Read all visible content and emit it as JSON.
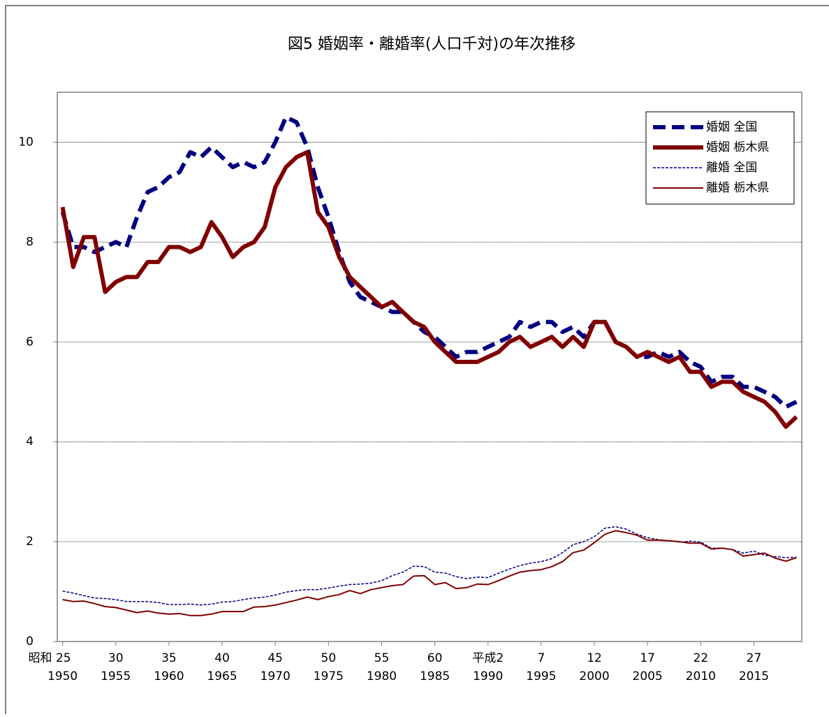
{
  "chart_data": {
    "type": "line",
    "title": "図5 婚姻率・離婚率(人口千対)の年次推移",
    "x": [
      1950,
      1951,
      1952,
      1953,
      1954,
      1955,
      1956,
      1957,
      1958,
      1959,
      1960,
      1961,
      1962,
      1963,
      1964,
      1965,
      1966,
      1967,
      1968,
      1969,
      1970,
      1971,
      1972,
      1973,
      1974,
      1975,
      1976,
      1977,
      1978,
      1979,
      1980,
      1981,
      1982,
      1983,
      1984,
      1985,
      1986,
      1987,
      1988,
      1989,
      1990,
      1991,
      1992,
      1993,
      1994,
      1995,
      1996,
      1997,
      1998,
      1999,
      2000,
      2001,
      2002,
      2003,
      2004,
      2005,
      2006,
      2007,
      2008,
      2009,
      2010,
      2011,
      2012,
      2013,
      2014,
      2015,
      2016,
      2017,
      2018,
      2019
    ],
    "xlim": [
      1949.5,
      2019.5
    ],
    "xticks": [
      {
        "value": 1950,
        "label": "1950",
        "era_label": "昭和 25"
      },
      {
        "value": 1955,
        "label": "1955",
        "era_label": "30"
      },
      {
        "value": 1960,
        "label": "1960",
        "era_label": "35"
      },
      {
        "value": 1965,
        "label": "1965",
        "era_label": "40"
      },
      {
        "value": 1970,
        "label": "1970",
        "era_label": "45"
      },
      {
        "value": 1975,
        "label": "1975",
        "era_label": "50"
      },
      {
        "value": 1980,
        "label": "1980",
        "era_label": "55"
      },
      {
        "value": 1985,
        "label": "1985",
        "era_label": "60"
      },
      {
        "value": 1990,
        "label": "1990",
        "era_label": "平成2"
      },
      {
        "value": 1995,
        "label": "1995",
        "era_label": "7"
      },
      {
        "value": 2000,
        "label": "2000",
        "era_label": "12"
      },
      {
        "value": 2005,
        "label": "2005",
        "era_label": "17"
      },
      {
        "value": 2010,
        "label": "2010",
        "era_label": "22"
      },
      {
        "value": 2015,
        "label": "2015",
        "era_label": "27"
      }
    ],
    "ylim": [
      0,
      11
    ],
    "yticks": [
      0,
      2,
      4,
      6,
      8,
      10
    ],
    "grid": true,
    "legend": "upper right",
    "series": [
      {
        "name": "婚姻 全国",
        "color": "#000080",
        "line_width": 6,
        "dashed": true,
        "values": [
          8.6,
          7.9,
          7.9,
          7.8,
          7.9,
          8.0,
          7.9,
          8.5,
          9.0,
          9.1,
          9.3,
          9.4,
          9.8,
          9.7,
          9.9,
          9.7,
          9.5,
          9.6,
          9.5,
          9.6,
          10.0,
          10.5,
          10.4,
          9.9,
          9.1,
          8.5,
          7.8,
          7.2,
          6.9,
          6.8,
          6.7,
          6.6,
          6.6,
          6.4,
          6.2,
          6.1,
          5.9,
          5.7,
          5.8,
          5.8,
          5.9,
          6.0,
          6.1,
          6.4,
          6.3,
          6.4,
          6.4,
          6.2,
          6.3,
          6.1,
          6.4,
          6.4,
          6.0,
          5.9,
          5.7,
          5.7,
          5.8,
          5.7,
          5.8,
          5.6,
          5.5,
          5.2,
          5.3,
          5.3,
          5.1,
          5.1,
          5.0,
          4.9,
          4.7,
          4.8
        ]
      },
      {
        "name": "婚姻 栃木県",
        "color": "#800000",
        "line_width": 6,
        "dashed": false,
        "values": [
          8.7,
          7.5,
          8.1,
          8.1,
          7.0,
          7.2,
          7.3,
          7.3,
          7.6,
          7.6,
          7.9,
          7.9,
          7.8,
          7.9,
          8.4,
          8.1,
          7.7,
          7.9,
          8.0,
          8.3,
          9.1,
          9.5,
          9.7,
          9.8,
          8.6,
          8.3,
          7.7,
          7.3,
          7.1,
          6.9,
          6.7,
          6.8,
          6.6,
          6.4,
          6.3,
          6.0,
          5.8,
          5.6,
          5.6,
          5.6,
          5.7,
          5.8,
          6.0,
          6.1,
          5.9,
          6.0,
          6.1,
          5.9,
          6.1,
          5.9,
          6.4,
          6.4,
          6.0,
          5.9,
          5.7,
          5.8,
          5.7,
          5.6,
          5.7,
          5.4,
          5.4,
          5.1,
          5.2,
          5.2,
          5.0,
          4.9,
          4.8,
          4.6,
          4.3,
          4.5
        ]
      },
      {
        "name": "離婚 全国",
        "color": "#000080",
        "line_width": 1.5,
        "dashed": true,
        "values": [
          1.01,
          0.97,
          0.92,
          0.87,
          0.86,
          0.84,
          0.8,
          0.8,
          0.8,
          0.78,
          0.74,
          0.74,
          0.75,
          0.73,
          0.75,
          0.79,
          0.8,
          0.84,
          0.87,
          0.89,
          0.93,
          0.99,
          1.02,
          1.04,
          1.04,
          1.07,
          1.11,
          1.14,
          1.15,
          1.17,
          1.22,
          1.32,
          1.39,
          1.51,
          1.5,
          1.39,
          1.37,
          1.3,
          1.26,
          1.29,
          1.28,
          1.37,
          1.45,
          1.52,
          1.57,
          1.6,
          1.66,
          1.78,
          1.94,
          2.0,
          2.1,
          2.27,
          2.3,
          2.25,
          2.15,
          2.08,
          2.04,
          2.02,
          1.99,
          2.01,
          1.99,
          1.87,
          1.87,
          1.84,
          1.77,
          1.81,
          1.73,
          1.7,
          1.68,
          1.69
        ]
      },
      {
        "name": "離婚 栃木県",
        "color": "#800000",
        "line_width": 2,
        "dashed": false,
        "values": [
          0.84,
          0.8,
          0.81,
          0.76,
          0.7,
          0.68,
          0.63,
          0.58,
          0.61,
          0.57,
          0.55,
          0.56,
          0.52,
          0.52,
          0.55,
          0.6,
          0.6,
          0.6,
          0.69,
          0.7,
          0.73,
          0.78,
          0.83,
          0.89,
          0.84,
          0.9,
          0.94,
          1.02,
          0.96,
          1.04,
          1.08,
          1.12,
          1.14,
          1.31,
          1.32,
          1.14,
          1.18,
          1.06,
          1.08,
          1.15,
          1.14,
          1.22,
          1.31,
          1.39,
          1.42,
          1.44,
          1.5,
          1.6,
          1.78,
          1.83,
          1.98,
          2.15,
          2.22,
          2.18,
          2.13,
          2.03,
          2.03,
          2.02,
          2.0,
          1.97,
          1.97,
          1.85,
          1.87,
          1.84,
          1.71,
          1.74,
          1.77,
          1.67,
          1.61,
          1.68
        ]
      }
    ]
  }
}
